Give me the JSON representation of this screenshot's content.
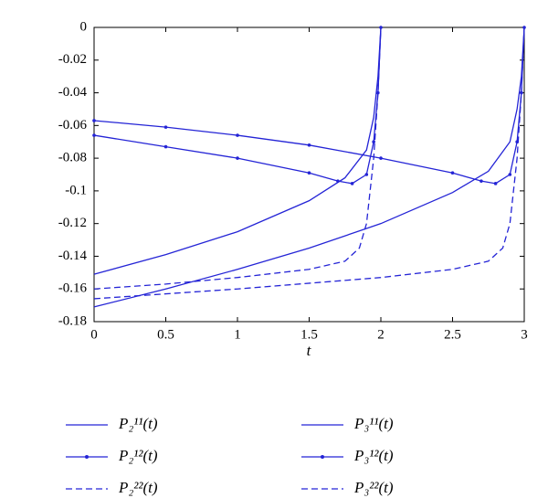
{
  "chart_data": {
    "type": "line",
    "xlabel": "t",
    "xlim": [
      0,
      3
    ],
    "ylim": [
      -0.18,
      0
    ],
    "xticks": [
      0,
      0.5,
      1,
      1.5,
      2,
      2.5,
      3
    ],
    "yticks": [
      0,
      -0.02,
      -0.04,
      -0.06,
      -0.08,
      -0.1,
      -0.12,
      -0.14,
      -0.16,
      -0.18
    ],
    "series": [
      {
        "name": "P₂¹¹(t)",
        "color": "#2424d6",
        "style": "solid",
        "marker": false,
        "x": [
          0,
          0.5,
          1,
          1.5,
          1.75,
          1.9,
          1.95,
          1.98,
          2
        ],
        "values": [
          -0.151,
          -0.139,
          -0.125,
          -0.106,
          -0.092,
          -0.075,
          -0.055,
          -0.03,
          0
        ]
      },
      {
        "name": "P₂¹²(t)",
        "color": "#2424d6",
        "style": "solid",
        "marker": true,
        "x": [
          0,
          0.5,
          1,
          1.5,
          1.7,
          1.8,
          1.9,
          1.95,
          1.98,
          2
        ],
        "values": [
          -0.066,
          -0.073,
          -0.08,
          -0.089,
          -0.094,
          -0.0955,
          -0.09,
          -0.07,
          -0.04,
          0
        ]
      },
      {
        "name": "P₂²²(t)",
        "color": "#2424d6",
        "style": "dashed",
        "marker": false,
        "x": [
          0,
          0.5,
          1,
          1.5,
          1.75,
          1.85,
          1.9,
          1.95,
          1.98,
          2
        ],
        "values": [
          -0.16,
          -0.157,
          -0.153,
          -0.148,
          -0.143,
          -0.135,
          -0.12,
          -0.08,
          -0.04,
          0
        ]
      },
      {
        "name": "P₃¹¹(t)",
        "color": "#2424d6",
        "style": "solid",
        "marker": false,
        "x": [
          0,
          0.5,
          1,
          1.5,
          2,
          2.5,
          2.75,
          2.9,
          2.95,
          2.98,
          3
        ],
        "values": [
          -0.171,
          -0.16,
          -0.148,
          -0.135,
          -0.12,
          -0.101,
          -0.088,
          -0.07,
          -0.05,
          -0.03,
          0
        ]
      },
      {
        "name": "P₃¹²(t)",
        "color": "#2424d6",
        "style": "solid",
        "marker": true,
        "x": [
          0,
          0.5,
          1,
          1.5,
          2,
          2.5,
          2.7,
          2.8,
          2.9,
          2.95,
          2.98,
          3
        ],
        "values": [
          -0.057,
          -0.061,
          -0.066,
          -0.072,
          -0.08,
          -0.089,
          -0.094,
          -0.0955,
          -0.09,
          -0.07,
          -0.04,
          0
        ]
      },
      {
        "name": "P₃²²(t)",
        "color": "#2424d6",
        "style": "dashed",
        "marker": false,
        "x": [
          0,
          1,
          2,
          2.5,
          2.75,
          2.85,
          2.9,
          2.95,
          2.98,
          3
        ],
        "values": [
          -0.166,
          -0.16,
          -0.153,
          -0.148,
          -0.143,
          -0.135,
          -0.12,
          -0.08,
          -0.04,
          0
        ]
      }
    ]
  }
}
